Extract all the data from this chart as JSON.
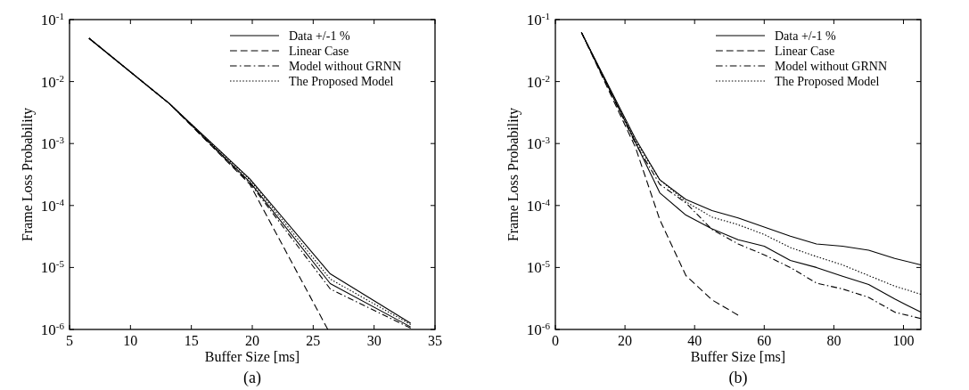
{
  "chart_data": [
    {
      "type": "line",
      "xlabel": "Buffer Size [ms]",
      "ylabel": "Frame Loss Probability",
      "log": "y",
      "legend": "top right",
      "grid": false,
      "xlim": [
        5,
        35
      ],
      "xticks": [
        5,
        10,
        15,
        20,
        25,
        30,
        35
      ],
      "ylim": [
        1e-06,
        0.1
      ],
      "yticks": [
        {
          "value": 0.1,
          "label": "10$^{-1}$"
        },
        {
          "value": 0.01,
          "label": "10$^{-2}$"
        },
        {
          "value": 0.001,
          "label": "10$^{-3}$"
        },
        {
          "value": 0.0001,
          "label": "10$^{-4}$"
        },
        {
          "value": 1e-05,
          "label": "10$^{-5}$"
        },
        {
          "value": 1e-06,
          "label": "10$^{-6}$"
        }
      ],
      "x": [
        6.6,
        13.2,
        19.8,
        26.4,
        33
      ],
      "annotations": [
        "(a)"
      ],
      "series": [
        {
          "name": "Data +/-1 %",
          "color": "#000000",
          "line_style": "solid",
          "values": [
            0.05,
            0.0044,
            0.00027,
            7.9e-06,
            1.26e-06
          ]
        },
        {
          "color": "#000000",
          "line_style": "solid",
          "values": [
            0.05,
            0.0044,
            0.00024,
            5.5e-06,
            1.1e-06
          ]
        },
        {
          "name": "Linear Case",
          "color": "#000000",
          "line_style": "dashed",
          "x": [
            6.6,
            13.2,
            19.8,
            26.2
          ],
          "values": [
            0.05,
            0.0044,
            0.00022,
            1e-06
          ]
        },
        {
          "name": "Model without GRNN",
          "color": "#000000",
          "line_style": "dashdot",
          "values": [
            0.05,
            0.0044,
            0.00023,
            4.5e-06,
            1.05e-06
          ]
        },
        {
          "name": "The Proposed Model",
          "color": "#000000",
          "line_style": "dotted",
          "values": [
            0.05,
            0.0044,
            0.00026,
            6.5e-06,
            1.2e-06
          ]
        }
      ]
    },
    {
      "type": "line",
      "xlabel": "Buffer Size [ms]",
      "ylabel": "Frame Loss Probability",
      "log": "y",
      "legend": "top right",
      "grid": false,
      "xlim": [
        0,
        105
      ],
      "xticks": [
        0,
        20,
        40,
        60,
        80,
        100
      ],
      "ylim": [
        1e-06,
        0.1
      ],
      "yticks": [
        {
          "value": 0.1,
          "label": "10$^{-1}$"
        },
        {
          "value": 0.01,
          "label": "10$^{-2}$"
        },
        {
          "value": 0.001,
          "label": "10$^{-3}$"
        },
        {
          "value": 0.0001,
          "label": "10$^{-4}$"
        },
        {
          "value": 1e-05,
          "label": "10$^{-5}$"
        },
        {
          "value": 1e-06,
          "label": "10$^{-6}$"
        }
      ],
      "x": [
        7.5,
        23,
        30,
        37.5,
        45,
        52.5,
        60,
        67.5,
        75,
        82.5,
        90,
        97.5,
        105
      ],
      "annotations": [
        "(b)"
      ],
      "series": [
        {
          "name": "Data +/-1 %",
          "color": "#000000",
          "line_style": "solid",
          "values": [
            0.062,
            0.0012,
            0.00026,
            0.000125,
            8.3e-05,
            6.3e-05,
            4.5e-05,
            3.2e-05,
            2.4e-05,
            2.2e-05,
            1.9e-05,
            1.4e-05,
            1.1e-05
          ]
        },
        {
          "color": "#000000",
          "line_style": "solid",
          "values": [
            0.062,
            0.00105,
            0.00016,
            7e-05,
            4.2e-05,
            2.8e-05,
            2.2e-05,
            1.3e-05,
            1e-05,
            7.2e-06,
            5.3e-06,
            3.1e-06,
            1.9e-06
          ]
        },
        {
          "name": "Linear Case",
          "color": "#000000",
          "line_style": "dashed",
          "values": [
            0.062,
            0.00087,
            5.9e-05,
            7.4e-06,
            3e-06,
            1.7e-06,
            null,
            null,
            null,
            null,
            null,
            null,
            null
          ]
        },
        {
          "name": "Model without GRNN",
          "color": "#000000",
          "line_style": "dashdot",
          "values": [
            0.062,
            0.001,
            0.00022,
            0.00011,
            4.1e-05,
            2.4e-05,
            1.6e-05,
            1e-05,
            5.6e-06,
            4.5e-06,
            3.3e-06,
            1.9e-06,
            1.5e-06
          ]
        },
        {
          "name": "The Proposed Model",
          "color": "#000000",
          "line_style": "dotted",
          "values": [
            0.062,
            0.0011,
            0.00026,
            0.000115,
            6.5e-05,
            4.9e-05,
            3.4e-05,
            2.1e-05,
            1.5e-05,
            1.1e-05,
            7.4e-06,
            5e-06,
            3.7e-06
          ]
        }
      ]
    }
  ]
}
